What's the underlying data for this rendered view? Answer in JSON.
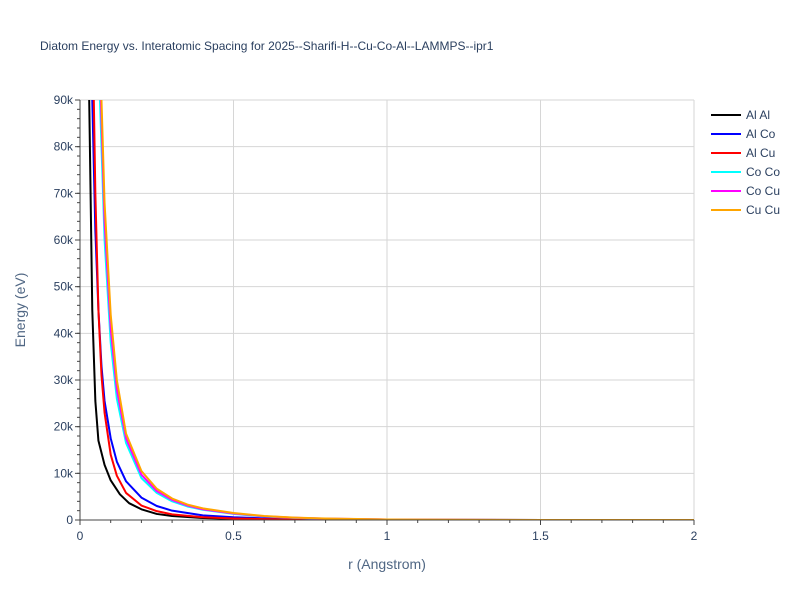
{
  "chart_data": {
    "type": "line",
    "title": "Diatom Energy vs. Interatomic Spacing for 2025--Sharifi-H--Cu-Co-Al--LAMMPS--ipr1",
    "xlabel": "r (Angstrom)",
    "ylabel": "Energy (eV)",
    "xlim": [
      0,
      2
    ],
    "ylim": [
      0,
      90000
    ],
    "x_ticks": [
      0,
      0.5,
      1,
      1.5,
      2
    ],
    "x_tick_labels": [
      "0",
      "0.5",
      "1",
      "1.5",
      "2"
    ],
    "y_ticks": [
      0,
      10000,
      20000,
      30000,
      40000,
      50000,
      60000,
      70000,
      80000,
      90000
    ],
    "y_tick_labels": [
      "0",
      "10k",
      "20k",
      "30k",
      "40k",
      "50k",
      "60k",
      "70k",
      "80k",
      "90k"
    ],
    "grid": true,
    "legend_position": "top-right",
    "series": [
      {
        "name": "Al Al",
        "color": "#000000",
        "x": [
          0.03,
          0.04,
          0.05,
          0.06,
          0.08,
          0.1,
          0.13,
          0.16,
          0.2,
          0.25,
          0.3,
          0.4,
          0.5,
          0.6,
          0.8,
          1.0,
          1.5,
          2.0
        ],
        "y": [
          90000,
          45000,
          25500,
          17000,
          11800,
          8500,
          5500,
          3600,
          2300,
          1300,
          850,
          420,
          230,
          130,
          50,
          10,
          0,
          0
        ]
      },
      {
        "name": "Al Co",
        "color": "#0000ff",
        "x": [
          0.04,
          0.05,
          0.06,
          0.07,
          0.08,
          0.1,
          0.12,
          0.15,
          0.2,
          0.25,
          0.3,
          0.4,
          0.5,
          0.6,
          0.8,
          1.0,
          1.5,
          2.0
        ],
        "y": [
          90000,
          62000,
          45000,
          33000,
          25500,
          17500,
          12500,
          8300,
          4800,
          3000,
          2000,
          1000,
          600,
          350,
          120,
          30,
          0,
          0
        ]
      },
      {
        "name": "Al Cu",
        "color": "#ff0000",
        "x": [
          0.045,
          0.05,
          0.06,
          0.07,
          0.08,
          0.1,
          0.12,
          0.15,
          0.2,
          0.25,
          0.3,
          0.4,
          0.5,
          0.6,
          0.8,
          1.0,
          1.5,
          2.0
        ],
        "y": [
          90000,
          70000,
          45000,
          31000,
          23000,
          14000,
          9500,
          5800,
          3100,
          1900,
          1200,
          600,
          330,
          190,
          60,
          15,
          0,
          0
        ]
      },
      {
        "name": "Co Co",
        "color": "#00ffff",
        "x": [
          0.065,
          0.08,
          0.1,
          0.12,
          0.15,
          0.2,
          0.25,
          0.3,
          0.35,
          0.4,
          0.5,
          0.6,
          0.7,
          0.8,
          1.0,
          1.5,
          2.0
        ],
        "y": [
          90000,
          60000,
          38000,
          26000,
          16500,
          9000,
          5800,
          4000,
          2900,
          2200,
          1300,
          750,
          450,
          280,
          100,
          0,
          0
        ]
      },
      {
        "name": "Co Cu",
        "color": "#ff00ff",
        "x": [
          0.068,
          0.08,
          0.1,
          0.12,
          0.15,
          0.2,
          0.25,
          0.3,
          0.35,
          0.4,
          0.5,
          0.6,
          0.7,
          0.8,
          1.0,
          1.5,
          2.0
        ],
        "y": [
          90000,
          64000,
          41000,
          28000,
          17500,
          9700,
          6200,
          4300,
          3100,
          2300,
          1400,
          800,
          480,
          300,
          110,
          0,
          0
        ]
      },
      {
        "name": "Cu Cu",
        "color": "#ffa500",
        "x": [
          0.07,
          0.08,
          0.1,
          0.12,
          0.15,
          0.2,
          0.25,
          0.3,
          0.35,
          0.4,
          0.5,
          0.6,
          0.7,
          0.8,
          1.0,
          1.5,
          2.0
        ],
        "y": [
          90000,
          68000,
          44000,
          30000,
          18500,
          10500,
          6700,
          4600,
          3300,
          2500,
          1500,
          850,
          520,
          320,
          120,
          0,
          0
        ]
      }
    ]
  }
}
